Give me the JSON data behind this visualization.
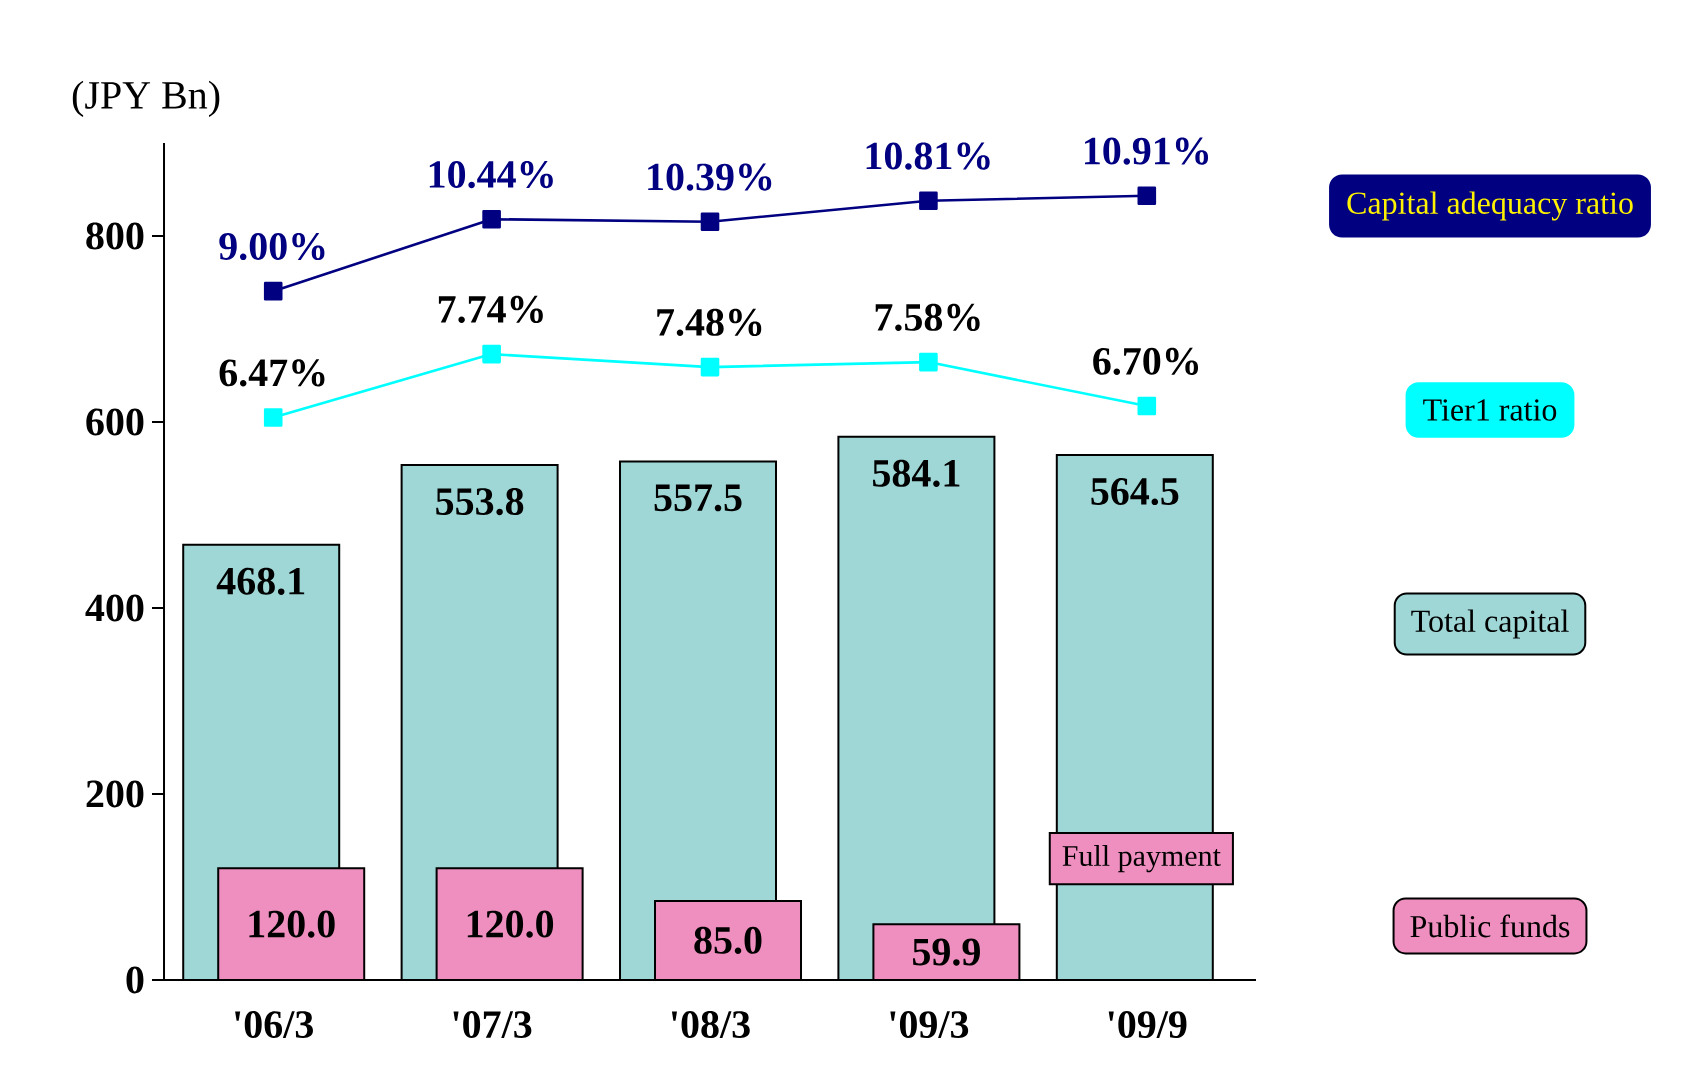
{
  "chart_data": {
    "type": "bar",
    "ylabel": "(JPY Bn)",
    "categories": [
      "'06/3",
      "'07/3",
      "'08/3",
      "'09/3",
      "'09/9"
    ],
    "ylim": [
      0,
      900
    ],
    "yticks": [
      0,
      200,
      400,
      600,
      800
    ],
    "legend": "right",
    "marker": "square",
    "annotations": [
      "Full payment"
    ],
    "series": [
      {
        "name": "Total capital",
        "color": "#9fd6d6",
        "values": [
          468.1,
          553.8,
          557.5,
          584.1,
          564.5
        ],
        "value_labels": [
          "468.1",
          "553.8",
          "557.5",
          "584.1",
          "564.5"
        ]
      },
      {
        "name": "Public funds",
        "color": "#ee8fbf",
        "values": [
          120.0,
          120.0,
          85.0,
          59.9,
          null
        ],
        "value_labels": [
          "120.0",
          "120.0",
          "85.0",
          "59.9",
          null
        ]
      },
      {
        "name": "Capital adequacy ratio",
        "type": "line",
        "axis": "y2",
        "color": "#000080",
        "values": [
          9.0,
          10.44,
          10.39,
          10.81,
          10.91
        ],
        "value_labels": [
          "9.00%",
          "10.44%",
          "10.39%",
          "10.81%",
          "10.91%"
        ]
      },
      {
        "name": "Tier1 ratio",
        "type": "line",
        "axis": "y2",
        "color": "#00ffff",
        "values": [
          6.47,
          7.74,
          7.48,
          7.58,
          6.7
        ],
        "value_labels": [
          "6.47%",
          "7.74%",
          "7.48%",
          "7.58%",
          "6.70%"
        ]
      }
    ]
  }
}
